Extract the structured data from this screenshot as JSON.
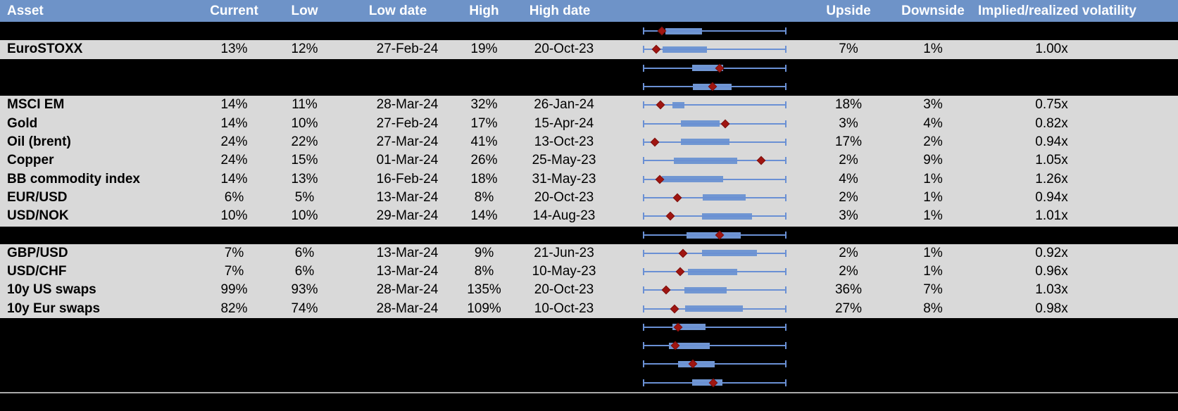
{
  "columns": [
    {
      "key": "asset",
      "label": "Asset"
    },
    {
      "key": "current",
      "label": "Current"
    },
    {
      "key": "low",
      "label": "Low"
    },
    {
      "key": "low_date",
      "label": "Low date"
    },
    {
      "key": "high",
      "label": "High"
    },
    {
      "key": "high_date",
      "label": "High date"
    },
    {
      "key": "chart",
      "label": ""
    },
    {
      "key": "upside",
      "label": "Upside"
    },
    {
      "key": "downside",
      "label": "Downside"
    },
    {
      "key": "implied",
      "label": "Implied/realized volatility"
    }
  ],
  "chart_data": {
    "type": "boxplot-sparklines",
    "note": "Each row shows a horizontal whisker spanning the full 1y vol range with an interquartile box and a red diamond for the current level; values are fractions of the whisker span.",
    "rows_with_plots": "all"
  },
  "rows": [
    {
      "type": "spacer",
      "plot": {
        "box_lo": 0.157,
        "box_hi": 0.412,
        "diamond": 0.132
      }
    },
    {
      "type": "data",
      "asset": "EuroSTOXX",
      "current": "13%",
      "low": "12%",
      "low_date": "27-Feb-24",
      "high": "19%",
      "high_date": "20-Oct-23",
      "upside": "7%",
      "downside": "1%",
      "implied": "1.00x",
      "plot": {
        "box_lo": 0.137,
        "box_hi": 0.446,
        "diamond": 0.093
      }
    },
    {
      "type": "spacer",
      "plot": {
        "box_lo": 0.342,
        "box_hi": 0.557,
        "diamond": 0.533
      }
    },
    {
      "type": "spacer",
      "plot": {
        "box_lo": 0.348,
        "box_hi": 0.618,
        "diamond": 0.484
      }
    },
    {
      "type": "data",
      "asset": "MSCI EM",
      "current": "14%",
      "low": "11%",
      "low_date": "28-Mar-24",
      "high": "32%",
      "high_date": "26-Jan-24",
      "upside": "18%",
      "downside": "3%",
      "implied": "0.75x",
      "plot": {
        "box_lo": 0.206,
        "box_hi": 0.289,
        "diamond": 0.123
      }
    },
    {
      "type": "data",
      "asset": "Gold",
      "current": "14%",
      "low": "10%",
      "low_date": "27-Feb-24",
      "high": "17%",
      "high_date": "15-Apr-24",
      "upside": "3%",
      "downside": "4%",
      "implied": "0.82x",
      "plot": {
        "box_lo": 0.265,
        "box_hi": 0.534,
        "diamond": 0.574
      }
    },
    {
      "type": "data",
      "asset": "Oil (brent)",
      "current": "24%",
      "low": "22%",
      "low_date": "27-Mar-24",
      "high": "41%",
      "high_date": "13-Oct-23",
      "upside": "17%",
      "downside": "2%",
      "implied": "0.94x",
      "plot": {
        "box_lo": 0.265,
        "box_hi": 0.603,
        "diamond": 0.083
      }
    },
    {
      "type": "data",
      "asset": "Copper",
      "current": "24%",
      "low": "15%",
      "low_date": "01-Mar-24",
      "high": "26%",
      "high_date": "25-May-23",
      "upside": "2%",
      "downside": "9%",
      "implied": "1.05x",
      "plot": {
        "box_lo": 0.216,
        "box_hi": 0.657,
        "diamond": 0.824
      }
    },
    {
      "type": "data",
      "asset": "BB commodity index",
      "current": "14%",
      "low": "13%",
      "low_date": "16-Feb-24",
      "high": "18%",
      "high_date": "31-May-23",
      "upside": "4%",
      "downside": "1%",
      "implied": "1.26x",
      "plot": {
        "box_lo": 0.132,
        "box_hi": 0.559,
        "diamond": 0.118
      }
    },
    {
      "type": "data",
      "asset": "EUR/USD",
      "current": "6%",
      "low": "5%",
      "low_date": "13-Mar-24",
      "high": "8%",
      "high_date": "20-Oct-23",
      "upside": "2%",
      "downside": "1%",
      "implied": "0.94x",
      "plot": {
        "box_lo": 0.417,
        "box_hi": 0.716,
        "diamond": 0.24
      }
    },
    {
      "type": "data",
      "asset": "USD/NOK",
      "current": "10%",
      "low": "10%",
      "low_date": "29-Mar-24",
      "high": "14%",
      "high_date": "14-Aug-23",
      "upside": "3%",
      "downside": "1%",
      "implied": "1.01x",
      "plot": {
        "box_lo": 0.412,
        "box_hi": 0.76,
        "diamond": 0.191
      }
    },
    {
      "type": "spacer",
      "plot": {
        "box_lo": 0.304,
        "box_hi": 0.68,
        "diamond": 0.533
      }
    },
    {
      "type": "data",
      "asset": "GBP/USD",
      "current": "7%",
      "low": "6%",
      "low_date": "13-Mar-24",
      "high": "9%",
      "high_date": "21-Jun-23",
      "upside": "2%",
      "downside": "1%",
      "implied": "0.92x",
      "plot": {
        "box_lo": 0.412,
        "box_hi": 0.794,
        "diamond": 0.279
      }
    },
    {
      "type": "data",
      "asset": "USD/CHF",
      "current": "7%",
      "low": "6%",
      "low_date": "13-Mar-24",
      "high": "8%",
      "high_date": "10-May-23",
      "upside": "2%",
      "downside": "1%",
      "implied": "0.96x",
      "plot": {
        "box_lo": 0.314,
        "box_hi": 0.657,
        "diamond": 0.26
      }
    },
    {
      "type": "data",
      "asset": "10y US swaps",
      "current": "99%",
      "low": "93%",
      "low_date": "28-Mar-24",
      "high": "135%",
      "high_date": "20-Oct-23",
      "upside": "36%",
      "downside": "7%",
      "implied": "1.03x",
      "plot": {
        "box_lo": 0.289,
        "box_hi": 0.583,
        "diamond": 0.162
      }
    },
    {
      "type": "data",
      "asset": "10y Eur swaps",
      "current": "82%",
      "low": "74%",
      "low_date": "28-Mar-24",
      "high": "109%",
      "high_date": "10-Oct-23",
      "upside": "27%",
      "downside": "8%",
      "implied": "0.98x",
      "plot": {
        "box_lo": 0.293,
        "box_hi": 0.696,
        "diamond": 0.222
      }
    },
    {
      "type": "spacer",
      "plot": {
        "box_lo": 0.206,
        "box_hi": 0.435,
        "diamond": 0.244
      }
    },
    {
      "type": "spacer",
      "plot": {
        "box_lo": 0.181,
        "box_hi": 0.467,
        "diamond": 0.227
      }
    },
    {
      "type": "spacer",
      "plot": {
        "box_lo": 0.245,
        "box_hi": 0.5,
        "diamond": 0.348
      }
    },
    {
      "type": "spacer",
      "plot": {
        "box_lo": 0.343,
        "box_hi": 0.554,
        "diamond": 0.49
      }
    }
  ],
  "colors": {
    "header_bg": "#6e93c8",
    "header_text": "#ffffff",
    "row_bg": "#d9d9d9",
    "spacer_bg": "#000000",
    "whisker_line": "#6a90d4",
    "box_fill": "#7096d2",
    "diamond_fill": "#a01511",
    "footer_separator": "#a9a9a9",
    "body_text": "#000000"
  }
}
